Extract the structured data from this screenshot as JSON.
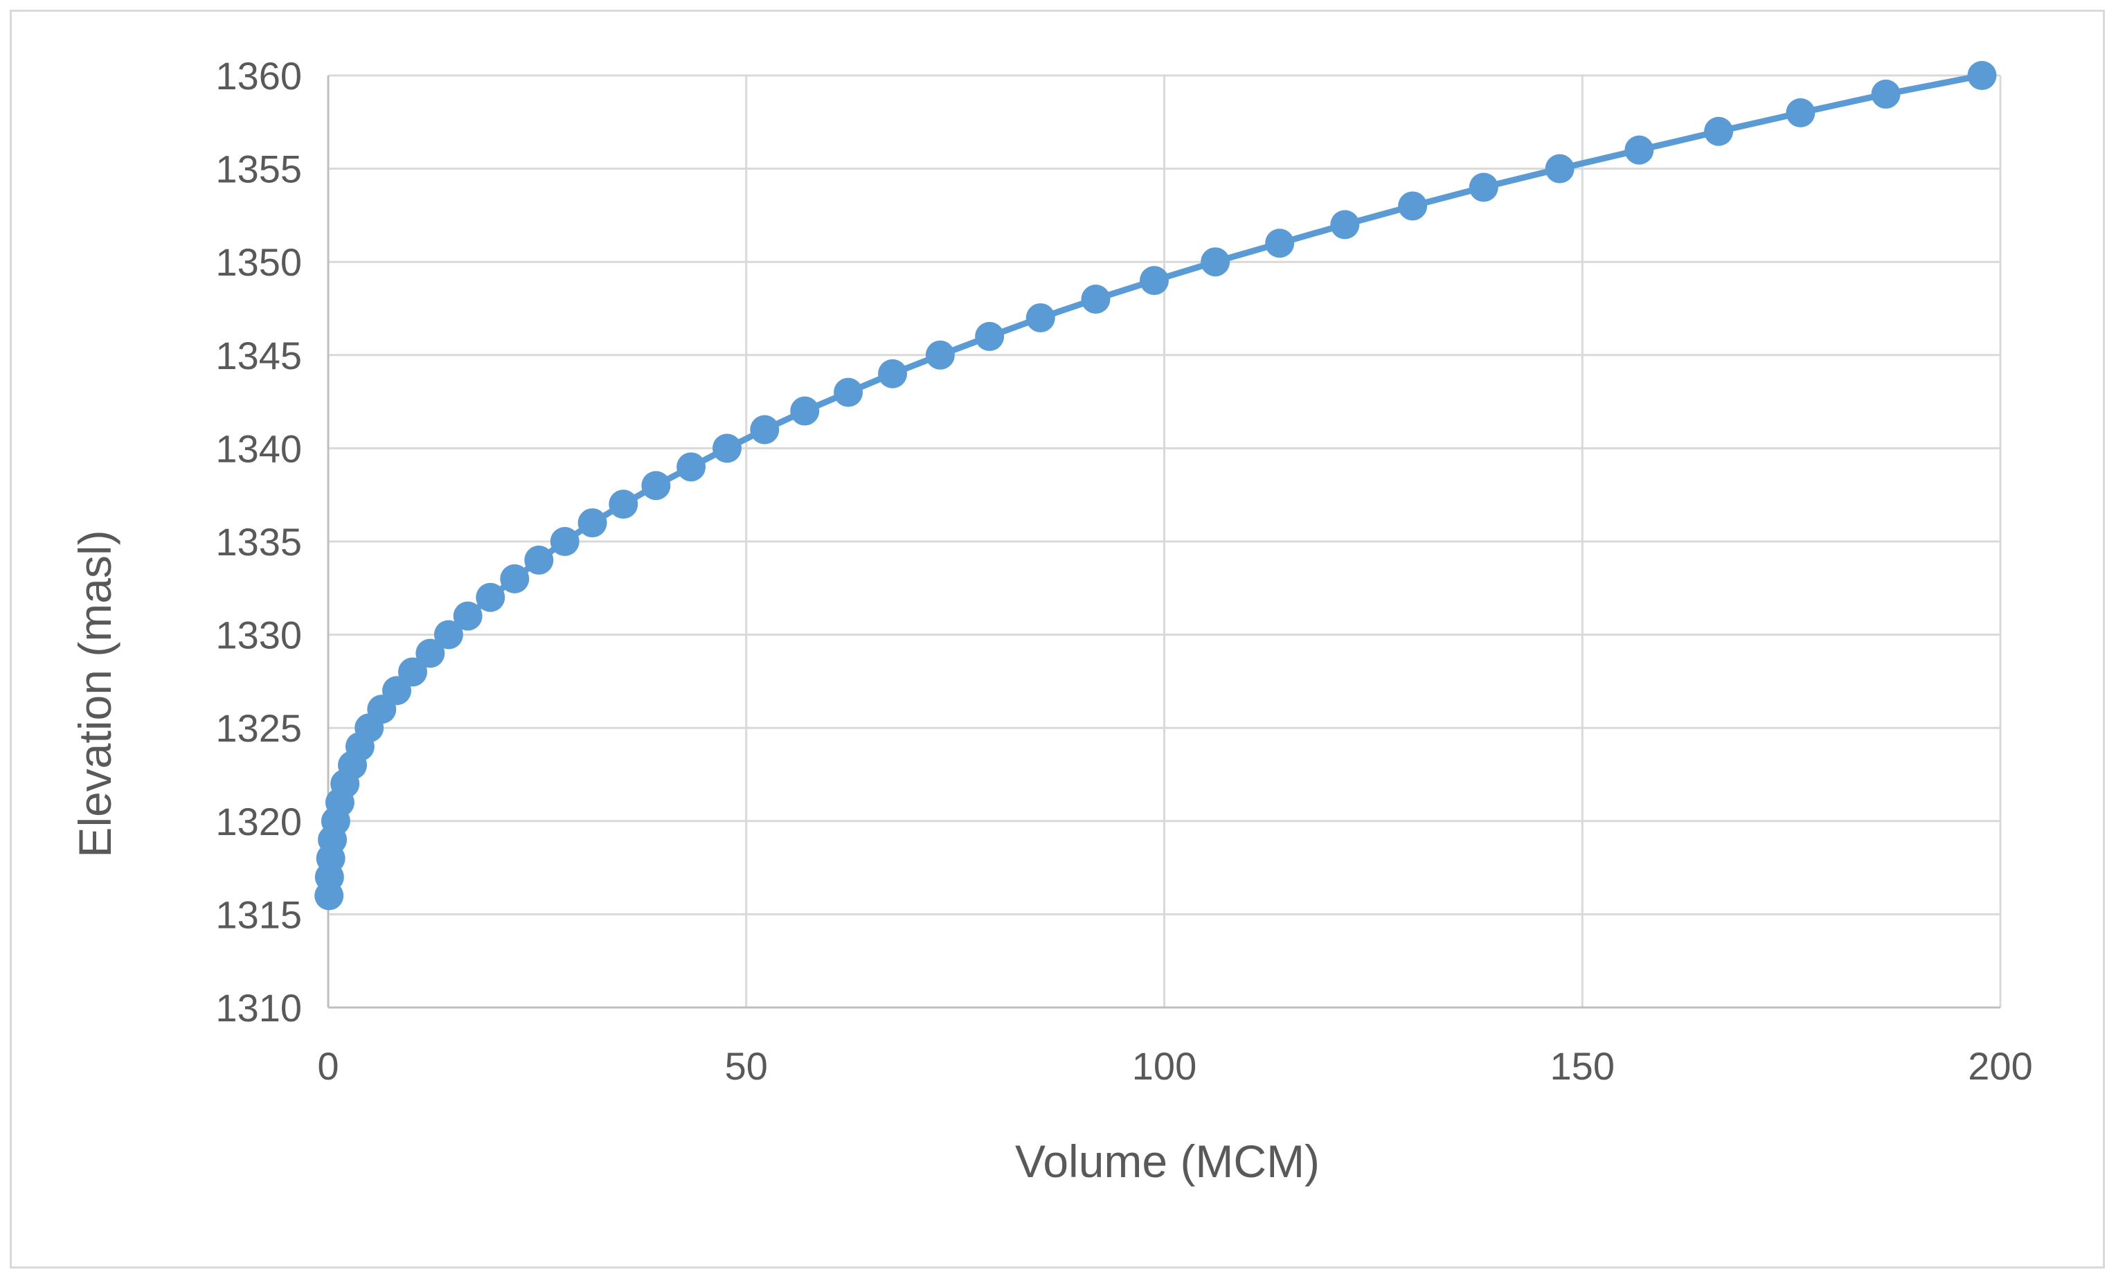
{
  "chart_data": {
    "type": "line",
    "xlabel": "Volume (MCM)",
    "ylabel": "Elevation (masl)",
    "xlim": [
      0,
      200
    ],
    "ylim": [
      1310,
      1360
    ],
    "x_ticks": [
      "0",
      "50",
      "100",
      "150",
      "200"
    ],
    "y_ticks": [
      "1310",
      "1315",
      "1320",
      "1325",
      "1330",
      "1335",
      "1340",
      "1345",
      "1350",
      "1355",
      "1360"
    ],
    "grid": true,
    "markers": true,
    "series": [
      {
        "color": "#5b9bd5",
        "x": [
          0.1,
          0.15,
          0.3,
          0.5,
          0.9,
          1.4,
          2.0,
          2.9,
          3.8,
          4.9,
          6.4,
          8.2,
          10.1,
          12.2,
          14.4,
          16.7,
          19.4,
          22.3,
          25.2,
          28.3,
          31.6,
          35.3,
          39.2,
          43.4,
          47.7,
          52.2,
          57.0,
          62.2,
          67.5,
          73.2,
          79.1,
          85.2,
          91.8,
          98.8,
          106.1,
          113.8,
          121.6,
          129.7,
          138.2,
          147.3,
          156.8,
          166.3,
          176.1,
          186.3,
          197.8
        ],
        "y": [
          1316,
          1317,
          1318,
          1319,
          1320,
          1321,
          1322,
          1323,
          1324,
          1325,
          1326,
          1327,
          1328,
          1329,
          1330,
          1331,
          1332,
          1333,
          1334,
          1335,
          1336,
          1337,
          1338,
          1339,
          1340,
          1341,
          1342,
          1343,
          1344,
          1345,
          1346,
          1347,
          1348,
          1349,
          1350,
          1351,
          1352,
          1353,
          1354,
          1355,
          1356,
          1357,
          1358,
          1359,
          1360
        ]
      }
    ]
  }
}
